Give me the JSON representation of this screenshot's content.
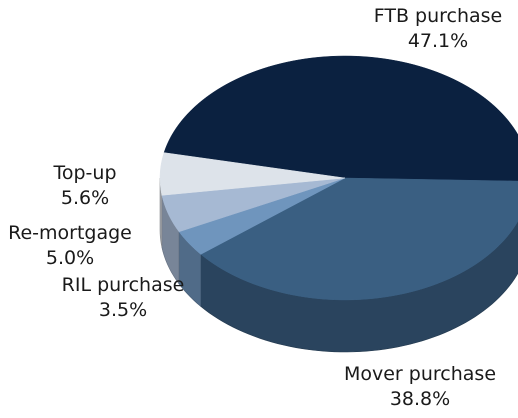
{
  "chart_data": {
    "type": "pie3d",
    "categories": [
      "FTB purchase",
      "Mover purchase",
      "RIL purchase",
      "Re-mortgage",
      "Top-up"
    ],
    "values": [
      47.1,
      38.8,
      3.5,
      5.0,
      5.6
    ],
    "value_labels": [
      "47.1%",
      "38.8%",
      "3.5%",
      "5.0%",
      "5.6%"
    ],
    "colors": [
      "#0b2140",
      "#3a5f82",
      "#6f95bd",
      "#a6b9d3",
      "#dde3ea"
    ]
  }
}
